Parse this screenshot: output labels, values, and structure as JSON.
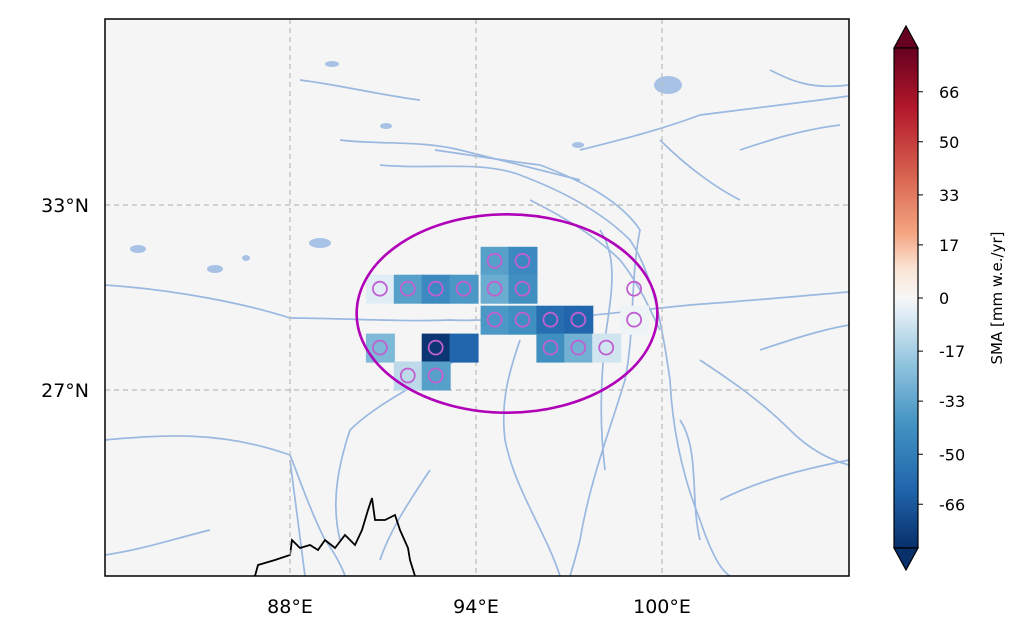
{
  "map": {
    "lon_labels": [
      "88°E",
      "94°E",
      "100°E"
    ],
    "lat_labels": [
      "33°N",
      "27°N"
    ],
    "gridlines": true,
    "colors": {
      "background": "#f5f5f5",
      "rivers": "#9ab8e0",
      "lakes": "#a8c2e6",
      "coastline": "#000000",
      "marker": "#c060d0",
      "ellipse": "#b000b8",
      "grid": "#bbbbbb"
    },
    "cells": [
      {
        "lon": 94.6,
        "lat": 31.2,
        "value": -35
      },
      {
        "lon": 95.5,
        "lat": 31.2,
        "value": -45
      },
      {
        "lon": 90.9,
        "lat": 30.3,
        "value": -5
      },
      {
        "lon": 91.8,
        "lat": 30.3,
        "value": -35
      },
      {
        "lon": 92.7,
        "lat": 30.3,
        "value": -45
      },
      {
        "lon": 93.6,
        "lat": 30.3,
        "value": -38
      },
      {
        "lon": 94.6,
        "lat": 30.3,
        "value": -30
      },
      {
        "lon": 95.5,
        "lat": 30.3,
        "value": -42
      },
      {
        "lon": 94.6,
        "lat": 29.3,
        "value": -38
      },
      {
        "lon": 95.5,
        "lat": 29.3,
        "value": -42
      },
      {
        "lon": 96.4,
        "lat": 29.3,
        "value": -58
      },
      {
        "lon": 97.3,
        "lat": 29.3,
        "value": -62
      },
      {
        "lon": 99.1,
        "lat": 29.3,
        "value": -2
      },
      {
        "lon": 90.9,
        "lat": 28.4,
        "value": -25
      },
      {
        "lon": 92.7,
        "lat": 28.4,
        "value": -78
      },
      {
        "lon": 93.6,
        "lat": 28.4,
        "value": -62
      },
      {
        "lon": 96.4,
        "lat": 28.4,
        "value": -42
      },
      {
        "lon": 97.3,
        "lat": 28.4,
        "value": -28
      },
      {
        "lon": 98.2,
        "lat": 28.4,
        "value": -8
      },
      {
        "lon": 91.8,
        "lat": 27.5,
        "value": -12
      },
      {
        "lon": 92.7,
        "lat": 27.5,
        "value": -35
      }
    ],
    "markers": [
      {
        "lon": 94.6,
        "lat": 31.2
      },
      {
        "lon": 95.5,
        "lat": 31.2
      },
      {
        "lon": 90.9,
        "lat": 30.3
      },
      {
        "lon": 91.8,
        "lat": 30.3
      },
      {
        "lon": 92.7,
        "lat": 30.3
      },
      {
        "lon": 93.6,
        "lat": 30.3
      },
      {
        "lon": 94.6,
        "lat": 30.3
      },
      {
        "lon": 95.5,
        "lat": 30.3
      },
      {
        "lon": 99.1,
        "lat": 30.3
      },
      {
        "lon": 94.6,
        "lat": 29.3
      },
      {
        "lon": 95.5,
        "lat": 29.3
      },
      {
        "lon": 96.4,
        "lat": 29.3
      },
      {
        "lon": 97.3,
        "lat": 29.3
      },
      {
        "lon": 99.1,
        "lat": 29.3
      },
      {
        "lon": 90.9,
        "lat": 28.4
      },
      {
        "lon": 92.7,
        "lat": 28.4
      },
      {
        "lon": 96.4,
        "lat": 28.4
      },
      {
        "lon": 97.3,
        "lat": 28.4
      },
      {
        "lon": 98.2,
        "lat": 28.4
      },
      {
        "lon": 91.8,
        "lat": 27.5
      },
      {
        "lon": 92.7,
        "lat": 27.5
      }
    ],
    "region_ellipse": {
      "center_lon": 95.0,
      "center_lat": 29.5,
      "semi_major_deg": 4.85,
      "semi_minor_deg": 3.2
    }
  },
  "colorbar": {
    "label": "SMA [mm w.e./yr]",
    "ticks": [
      "66",
      "50",
      "33",
      "17",
      "0",
      "-17",
      "-33",
      "-50",
      "-66"
    ],
    "tick_values": [
      66,
      50,
      33,
      17,
      0,
      -17,
      -33,
      -50,
      -66
    ],
    "range": [
      -80,
      80
    ],
    "colormap": "RdBu_r",
    "extend": "both"
  }
}
